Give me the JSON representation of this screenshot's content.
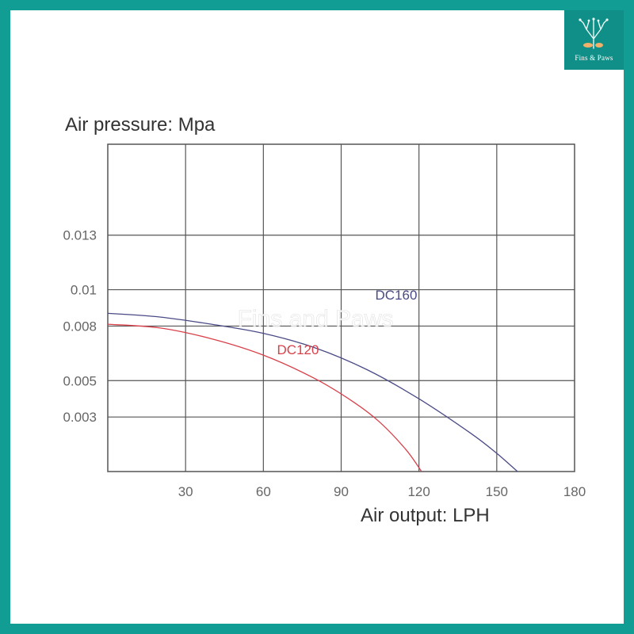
{
  "brand": {
    "name": "Fins & Paws",
    "watermark": "Fins and Paws",
    "frame_color": "#119c94",
    "logo_bg": "#0f8f87"
  },
  "chart_data": {
    "type": "line",
    "ylabel": "Air pressure: Mpa",
    "xlabel": "Air output: LPH",
    "x_ticks": [
      30,
      60,
      90,
      120,
      150,
      180
    ],
    "y_tick_labels": [
      "0.003",
      "0.005",
      "0.008",
      "0.01",
      "0.013"
    ],
    "y_tick_values": [
      0.003,
      0.005,
      0.008,
      0.01,
      0.013
    ],
    "xlim": [
      0,
      180
    ],
    "ylim": [
      0,
      0.018
    ],
    "grid": true,
    "series": [
      {
        "name": "DC160",
        "color": "#4a4a86",
        "points": [
          [
            0,
            0.0087
          ],
          [
            20,
            0.0085
          ],
          [
            40,
            0.0081
          ],
          [
            60,
            0.0076
          ],
          [
            80,
            0.0068
          ],
          [
            100,
            0.0056
          ],
          [
            120,
            0.004
          ],
          [
            140,
            0.0021
          ],
          [
            150,
            0.001
          ],
          [
            158,
            0.0
          ]
        ]
      },
      {
        "name": "DC120",
        "color": "#d9404a",
        "points": [
          [
            0,
            0.0081
          ],
          [
            20,
            0.0079
          ],
          [
            40,
            0.0073
          ],
          [
            60,
            0.0064
          ],
          [
            80,
            0.0051
          ],
          [
            95,
            0.0038
          ],
          [
            105,
            0.0027
          ],
          [
            115,
            0.0012
          ],
          [
            121,
            0.0
          ]
        ]
      }
    ]
  }
}
